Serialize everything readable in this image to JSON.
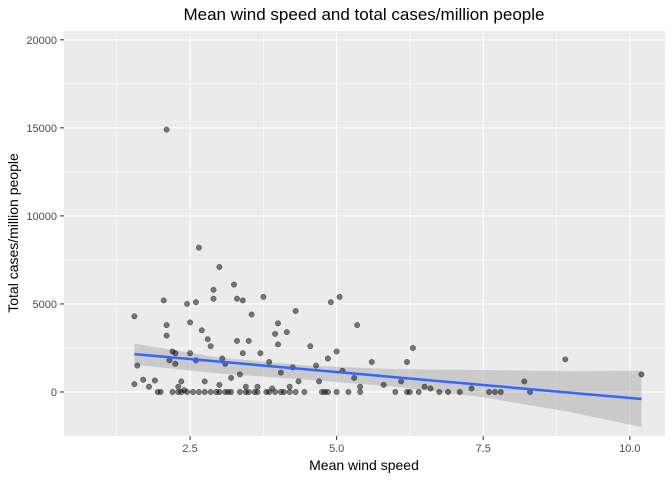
{
  "chart_data": {
    "type": "scatter",
    "title": "Mean wind speed and total cases/million people",
    "xlabel": "Mean wind speed",
    "ylabel": "Total cases/million people",
    "xlim": [
      0.35,
      10.6
    ],
    "ylim": [
      -2500,
      20500
    ],
    "x_ticks": [
      2.5,
      5.0,
      7.5,
      10.0
    ],
    "x_tick_labels": [
      "2.5",
      "5.0",
      "7.5",
      "10.0"
    ],
    "y_ticks": [
      0,
      5000,
      10000,
      15000,
      20000
    ],
    "y_tick_labels": [
      "0",
      "5000",
      "10000",
      "15000",
      "20000"
    ],
    "grid": true,
    "colors": {
      "panel": "#EBEBEB",
      "grid": "#FFFFFF",
      "points": "#000000",
      "trend": "#3366FF",
      "band": "#999999"
    },
    "points": [
      [
        1.55,
        4300
      ],
      [
        1.6,
        1500
      ],
      [
        1.55,
        450
      ],
      [
        1.7,
        700
      ],
      [
        1.8,
        300
      ],
      [
        1.9,
        650
      ],
      [
        2.0,
        0
      ],
      [
        2.05,
        5200
      ],
      [
        2.1,
        14900
      ],
      [
        2.1,
        3800
      ],
      [
        2.1,
        3200
      ],
      [
        2.15,
        1800
      ],
      [
        2.2,
        2300
      ],
      [
        2.25,
        1600
      ],
      [
        2.25,
        2200
      ],
      [
        2.3,
        0
      ],
      [
        2.3,
        300
      ],
      [
        2.35,
        600
      ],
      [
        2.4,
        100
      ],
      [
        2.45,
        5000
      ],
      [
        2.5,
        3950
      ],
      [
        2.5,
        2200
      ],
      [
        2.55,
        0
      ],
      [
        2.6,
        5100
      ],
      [
        2.6,
        1800
      ],
      [
        2.65,
        8200
      ],
      [
        2.7,
        3500
      ],
      [
        2.75,
        0
      ],
      [
        2.75,
        600
      ],
      [
        2.8,
        3000
      ],
      [
        2.85,
        2600
      ],
      [
        2.9,
        5800
      ],
      [
        2.9,
        5300
      ],
      [
        2.95,
        0
      ],
      [
        3.0,
        7100
      ],
      [
        3.0,
        400
      ],
      [
        3.05,
        1900
      ],
      [
        3.1,
        1600
      ],
      [
        3.15,
        0
      ],
      [
        3.2,
        800
      ],
      [
        3.25,
        6100
      ],
      [
        3.3,
        5300
      ],
      [
        3.3,
        2900
      ],
      [
        3.35,
        1000
      ],
      [
        3.4,
        5200
      ],
      [
        3.4,
        2200
      ],
      [
        3.45,
        300
      ],
      [
        3.5,
        2900
      ],
      [
        3.55,
        4400
      ],
      [
        3.6,
        0
      ],
      [
        3.65,
        300
      ],
      [
        3.7,
        2200
      ],
      [
        3.75,
        5400
      ],
      [
        3.8,
        0
      ],
      [
        3.85,
        1700
      ],
      [
        3.9,
        200
      ],
      [
        3.95,
        3300
      ],
      [
        4.0,
        3900
      ],
      [
        4.0,
        2700
      ],
      [
        4.05,
        1100
      ],
      [
        4.1,
        0
      ],
      [
        4.15,
        3400
      ],
      [
        4.2,
        300
      ],
      [
        4.25,
        1400
      ],
      [
        4.3,
        4600
      ],
      [
        4.35,
        600
      ],
      [
        4.45,
        0
      ],
      [
        4.55,
        2600
      ],
      [
        4.65,
        1500
      ],
      [
        4.7,
        600
      ],
      [
        4.8,
        0
      ],
      [
        4.85,
        1900
      ],
      [
        4.9,
        5100
      ],
      [
        5.0,
        2300
      ],
      [
        5.0,
        0
      ],
      [
        5.05,
        5400
      ],
      [
        5.1,
        1200
      ],
      [
        5.2,
        0
      ],
      [
        5.3,
        800
      ],
      [
        5.35,
        3800
      ],
      [
        5.4,
        300
      ],
      [
        5.6,
        1700
      ],
      [
        5.8,
        400
      ],
      [
        6.0,
        0
      ],
      [
        6.1,
        600
      ],
      [
        6.2,
        1700
      ],
      [
        6.3,
        2500
      ],
      [
        6.4,
        0
      ],
      [
        6.5,
        300
      ],
      [
        6.6,
        200
      ],
      [
        6.75,
        0
      ],
      [
        6.9,
        0
      ],
      [
        7.1,
        0
      ],
      [
        7.3,
        200
      ],
      [
        7.6,
        0
      ],
      [
        7.7,
        0
      ],
      [
        8.2,
        600
      ],
      [
        8.3,
        0
      ],
      [
        8.9,
        1850
      ],
      [
        10.2,
        1000
      ],
      [
        1.95,
        0
      ],
      [
        2.2,
        0
      ],
      [
        2.35,
        0
      ],
      [
        2.45,
        0
      ],
      [
        2.65,
        0
      ],
      [
        2.85,
        0
      ],
      [
        3.0,
        0
      ],
      [
        3.1,
        0
      ],
      [
        3.2,
        0
      ],
      [
        3.35,
        0
      ],
      [
        3.45,
        0
      ],
      [
        3.5,
        0
      ],
      [
        3.65,
        0
      ],
      [
        3.85,
        0
      ],
      [
        3.95,
        0
      ],
      [
        4.05,
        0
      ],
      [
        4.2,
        0
      ],
      [
        4.3,
        0
      ],
      [
        4.75,
        0
      ],
      [
        4.85,
        0
      ],
      [
        5.4,
        0
      ],
      [
        6.2,
        0
      ],
      [
        6.25,
        0
      ],
      [
        7.8,
        0
      ]
    ],
    "trend": {
      "x": [
        1.55,
        10.2
      ],
      "y": [
        2150,
        -400
      ]
    },
    "confidence_band": {
      "x": [
        1.55,
        3.0,
        4.5,
        6.0,
        7.5,
        9.0,
        10.2
      ],
      "upper": [
        2750,
        1950,
        1500,
        1300,
        1250,
        1180,
        1200
      ],
      "lower": [
        1550,
        1050,
        700,
        300,
        -300,
        -1150,
        -2000
      ]
    }
  }
}
